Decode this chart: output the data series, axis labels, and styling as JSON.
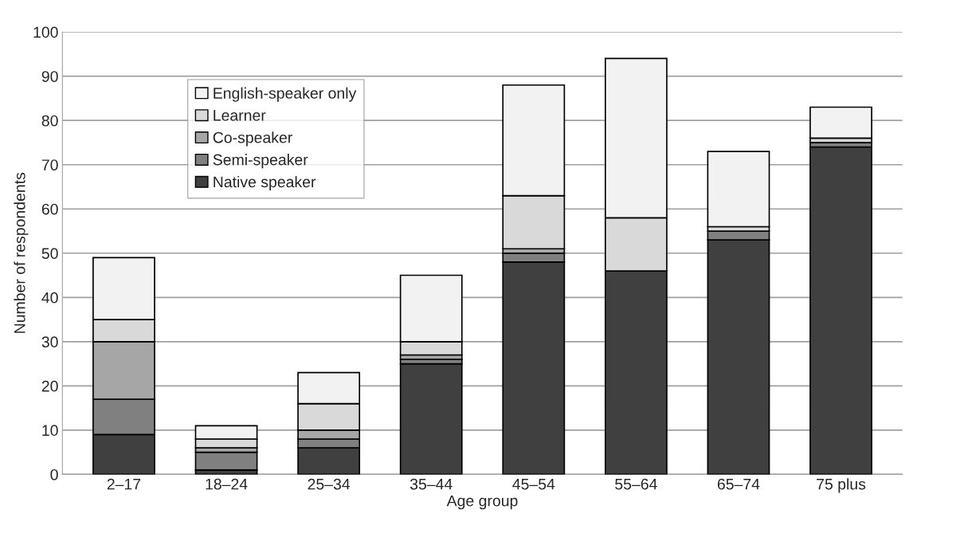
{
  "chart_data": {
    "type": "bar",
    "stacked": true,
    "xlabel": "Age group",
    "ylabel": "Number of respondents",
    "categories": [
      "2–17",
      "18–24",
      "25–34",
      "35–44",
      "45–54",
      "55–64",
      "65–74",
      "75 plus"
    ],
    "series": [
      {
        "name": "Native speaker",
        "color": "#404040",
        "values": [
          9,
          1,
          6,
          25,
          48,
          46,
          53,
          74
        ]
      },
      {
        "name": "Semi-speaker",
        "color": "#808080",
        "values": [
          8,
          4,
          2,
          1,
          2,
          0,
          2,
          1
        ]
      },
      {
        "name": "Co-speaker",
        "color": "#a6a6a6",
        "values": [
          13,
          1,
          2,
          1,
          1,
          0,
          0,
          0
        ]
      },
      {
        "name": "Learner",
        "color": "#d9d9d9",
        "values": [
          5,
          2,
          6,
          3,
          12,
          12,
          1,
          1
        ]
      },
      {
        "name": "English-speaker only",
        "color": "#f2f2f2",
        "values": [
          14,
          3,
          7,
          15,
          25,
          36,
          17,
          7
        ]
      }
    ],
    "ylim": [
      0,
      100
    ],
    "yticks": [
      0,
      10,
      20,
      30,
      40,
      50,
      60,
      70,
      80,
      90,
      100
    ],
    "grid": "y",
    "legend": "top left"
  }
}
